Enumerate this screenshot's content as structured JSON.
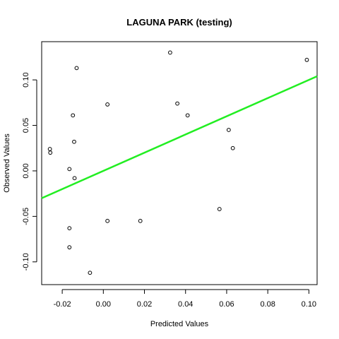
{
  "chart_data": {
    "type": "scatter",
    "title": "LAGUNA PARK (testing)",
    "xlabel": "Predicted Values",
    "ylabel": "Observed Values",
    "xlim": [
      -0.03,
      0.104
    ],
    "ylim": [
      -0.125,
      0.142
    ],
    "xticks": [
      {
        "value": -0.02,
        "label": "-0.02"
      },
      {
        "value": 0.0,
        "label": "0.00"
      },
      {
        "value": 0.02,
        "label": "0.02"
      },
      {
        "value": 0.04,
        "label": "0.04"
      },
      {
        "value": 0.06,
        "label": "0.06"
      },
      {
        "value": 0.08,
        "label": "0.08"
      },
      {
        "value": 0.1,
        "label": "0.10"
      }
    ],
    "yticks": [
      {
        "value": -0.1,
        "label": "-0.10"
      },
      {
        "value": -0.05,
        "label": "-0.05"
      },
      {
        "value": 0.0,
        "label": "0.00"
      },
      {
        "value": 0.05,
        "label": "0.05"
      },
      {
        "value": 0.1,
        "label": "0.10"
      }
    ],
    "points": [
      {
        "x": -0.026,
        "y": 0.024
      },
      {
        "x": -0.0258,
        "y": 0.02
      },
      {
        "x": -0.0165,
        "y": 0.002
      },
      {
        "x": -0.0165,
        "y": -0.063
      },
      {
        "x": -0.0165,
        "y": -0.084
      },
      {
        "x": -0.0148,
        "y": 0.061
      },
      {
        "x": -0.0142,
        "y": 0.032
      },
      {
        "x": -0.014,
        "y": -0.008
      },
      {
        "x": -0.013,
        "y": 0.113
      },
      {
        "x": -0.0065,
        "y": -0.112
      },
      {
        "x": 0.002,
        "y": 0.073
      },
      {
        "x": 0.002,
        "y": -0.055
      },
      {
        "x": 0.018,
        "y": -0.055
      },
      {
        "x": 0.0325,
        "y": 0.13
      },
      {
        "x": 0.036,
        "y": 0.074
      },
      {
        "x": 0.041,
        "y": 0.061
      },
      {
        "x": 0.0565,
        "y": -0.042
      },
      {
        "x": 0.061,
        "y": 0.045
      },
      {
        "x": 0.063,
        "y": 0.025
      },
      {
        "x": 0.099,
        "y": 0.122
      }
    ],
    "fit_line": {
      "x": [
        -0.03,
        0.104
      ],
      "y": [
        -0.03,
        0.104
      ],
      "color": "#22ee22"
    },
    "point_color": "#000000",
    "grid": false,
    "legend": "none"
  }
}
